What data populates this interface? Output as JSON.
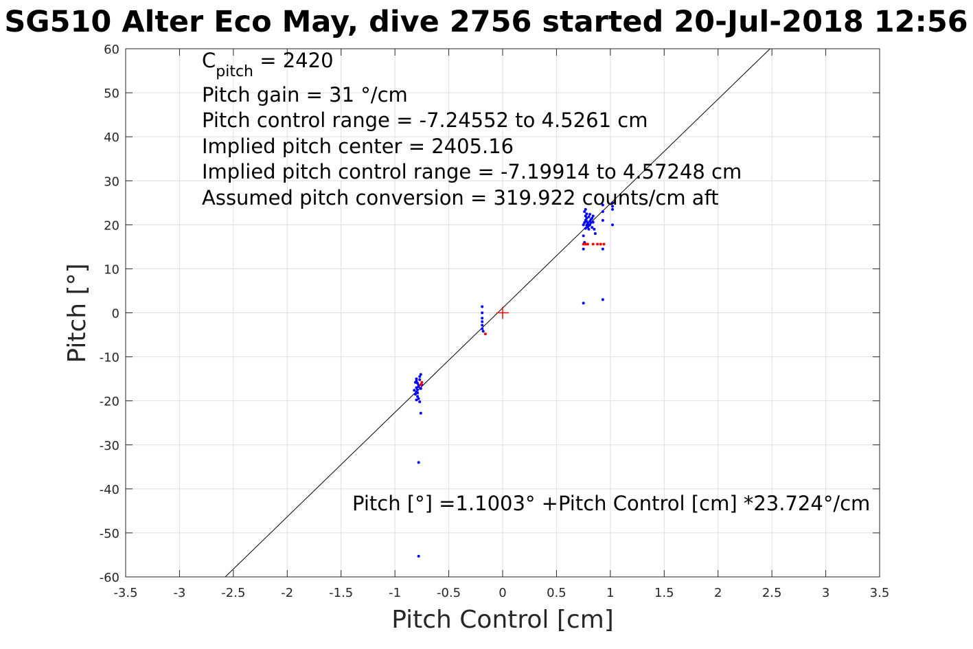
{
  "chart_data": {
    "type": "scatter",
    "title": "SG510 Alter Eco May, dive 2756 started 20-Jul-2018 12:56",
    "xlabel": "Pitch Control [cm]",
    "ylabel": "Pitch [°]",
    "xlim": [
      -3.5,
      3.5
    ],
    "ylim": [
      -60,
      60
    ],
    "x_ticks": [
      -3.5,
      -3,
      -2.5,
      -2,
      -1.5,
      -1,
      -0.5,
      0,
      0.5,
      1,
      1.5,
      2,
      2.5,
      3,
      3.5
    ],
    "y_ticks": [
      -60,
      -50,
      -40,
      -30,
      -20,
      -10,
      0,
      10,
      20,
      30,
      40,
      50,
      60
    ],
    "grid": true,
    "fit_line": {
      "intercept": 1.1003,
      "slope": 23.724,
      "color": "#000000"
    },
    "center_marker": {
      "x": 0,
      "y": 0,
      "color": "#ff0000",
      "marker": "plus"
    },
    "series": [
      {
        "color": "#0000ff",
        "points": [
          [
            -0.8,
            -15.5
          ],
          [
            -0.79,
            -16
          ],
          [
            -0.78,
            -16.5
          ],
          [
            -0.8,
            -17
          ],
          [
            -0.79,
            -17.5
          ],
          [
            -0.8,
            -18
          ],
          [
            -0.81,
            -18.5
          ],
          [
            -0.79,
            -19
          ],
          [
            -0.78,
            -19.5
          ],
          [
            -0.8,
            -15
          ],
          [
            -0.77,
            -14.5
          ],
          [
            -0.76,
            -14
          ],
          [
            -0.77,
            -15.2
          ],
          [
            -0.78,
            -16.8
          ],
          [
            -0.76,
            -17.2
          ],
          [
            -0.79,
            -18.2
          ],
          [
            -0.8,
            -19.8
          ],
          [
            -0.77,
            -20.2
          ],
          [
            -0.76,
            -22.8
          ],
          [
            -0.78,
            -34
          ],
          [
            -0.78,
            -55.3
          ],
          [
            -0.82,
            -17.6
          ],
          [
            -0.75,
            -16.4
          ],
          [
            -0.81,
            -15.8
          ],
          [
            -0.19,
            1.4
          ],
          [
            -0.19,
            0
          ],
          [
            -0.19,
            -1.2
          ],
          [
            -0.19,
            -2
          ],
          [
            -0.19,
            -2.8
          ],
          [
            -0.19,
            -3.6
          ],
          [
            -0.18,
            -4.2
          ],
          [
            0.75,
            20
          ],
          [
            0.76,
            20.5
          ],
          [
            0.77,
            21
          ],
          [
            0.78,
            21.5
          ],
          [
            0.79,
            20.2
          ],
          [
            0.8,
            19.8
          ],
          [
            0.81,
            20.8
          ],
          [
            0.82,
            21.2
          ],
          [
            0.77,
            22
          ],
          [
            0.78,
            22.5
          ],
          [
            0.76,
            23
          ],
          [
            0.77,
            23.5
          ],
          [
            0.79,
            19.5
          ],
          [
            0.8,
            19
          ],
          [
            0.81,
            20
          ],
          [
            0.82,
            20.5
          ],
          [
            0.83,
            21.5
          ],
          [
            0.84,
            22
          ],
          [
            0.85,
            19
          ],
          [
            0.86,
            18
          ],
          [
            0.75,
            17.5
          ],
          [
            0.76,
            16
          ],
          [
            0.75,
            14.5
          ],
          [
            0.77,
            19.2
          ],
          [
            0.78,
            20.8
          ],
          [
            0.8,
            21.8
          ],
          [
            0.81,
            22.4
          ],
          [
            0.79,
            20.4
          ],
          [
            0.78,
            19.9
          ],
          [
            0.84,
            20.6
          ],
          [
            0.83,
            19.4
          ],
          [
            0.93,
            24.5
          ],
          [
            0.93,
            23
          ],
          [
            0.93,
            21
          ],
          [
            0.93,
            14.5
          ],
          [
            0.93,
            3
          ],
          [
            0.75,
            2.2
          ],
          [
            1.02,
            25
          ],
          [
            1.02,
            24.2
          ],
          [
            1.02,
            23.5
          ],
          [
            1.02,
            20
          ]
        ]
      },
      {
        "color": "#ff0000",
        "points": [
          [
            -0.76,
            -16.3
          ],
          [
            -0.75,
            -15.8
          ],
          [
            -0.16,
            -4.8
          ],
          [
            0.75,
            15.6
          ],
          [
            0.77,
            15.6
          ],
          [
            0.79,
            15.6
          ],
          [
            0.84,
            15.6
          ],
          [
            0.88,
            15.6
          ],
          [
            0.91,
            15.6
          ],
          [
            0.94,
            15.6
          ]
        ]
      }
    ],
    "annotations": {
      "c_pitch_main": "C",
      "c_pitch_sub": "pitch",
      "c_pitch_value": " = 2420",
      "lines": [
        "Pitch gain = 31 °/cm",
        "Pitch control range = -7.24552 to 4.5261 cm",
        "Implied pitch center = 2405.16",
        "Implied pitch control range = -7.19914 to 4.57248 cm",
        "Assumed pitch conversion = 319.922 counts/cm aft"
      ],
      "fit_equation": "Pitch [°] =1.1003° +Pitch Control [cm] *23.724°/cm"
    }
  }
}
